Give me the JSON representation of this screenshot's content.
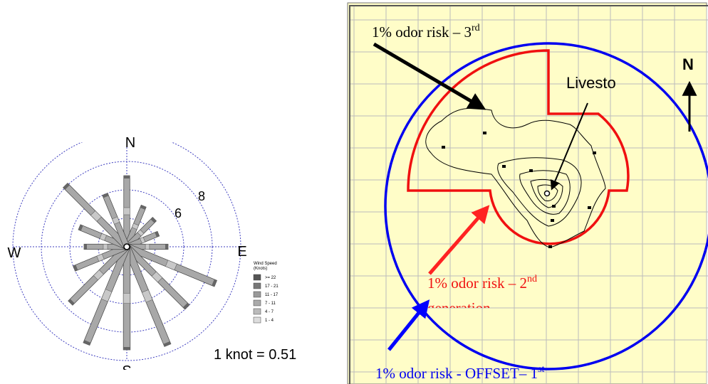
{
  "wind_rose": {
    "compass": {
      "north": "N",
      "south": "S",
      "west": "W",
      "east": "E"
    },
    "ring_labels": [
      "8",
      "6"
    ],
    "legend": {
      "title": [
        "Wind Speed",
        "(Knots)"
      ],
      "entries": [
        ">= 22",
        "17 - 21",
        "11 - 17",
        "7 - 11",
        "4 - 7",
        "1 - 4"
      ]
    },
    "note": "1 knot = 0.51"
  },
  "map": {
    "north_label": "N",
    "source_label": "Livesto",
    "third_generation": {
      "text": "1% odor risk – 3",
      "superscript": "rd"
    },
    "second_generation": {
      "text": "1% odor risk – 2",
      "superscript": "nd",
      "line2": "generation"
    },
    "first_generation": {
      "text": "1% odor risk - OFFSET– 1",
      "superscript": "st"
    }
  }
}
